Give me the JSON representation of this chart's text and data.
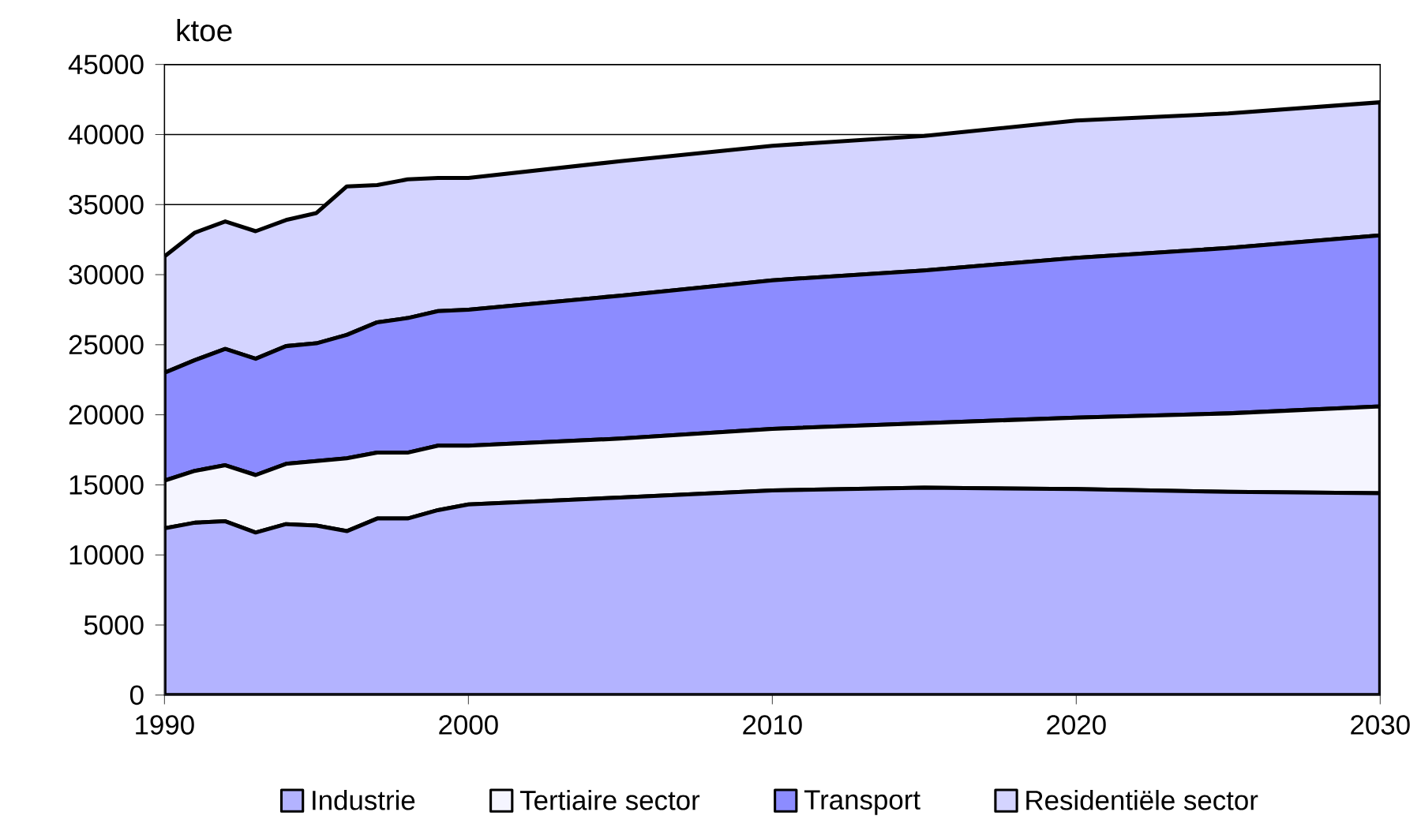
{
  "chart_data": {
    "type": "area",
    "stacked": true,
    "ylabel": "ktoe",
    "x": [
      1990,
      1991,
      1992,
      1993,
      1994,
      1995,
      1996,
      1997,
      1998,
      1999,
      2000,
      2005,
      2010,
      2015,
      2020,
      2025,
      2030
    ],
    "xlim": [
      1990,
      2030
    ],
    "xticks": [
      1990,
      2000,
      2010,
      2020,
      2030
    ],
    "ylim": [
      0,
      45000
    ],
    "yticks": [
      0,
      5000,
      10000,
      15000,
      20000,
      25000,
      30000,
      35000,
      40000,
      45000
    ],
    "grid": "y",
    "legend": "bottom",
    "series": [
      {
        "name": "Industrie",
        "color": "#b3b3ff",
        "values": [
          11900,
          12300,
          12400,
          11600,
          12200,
          12100,
          11700,
          12600,
          12600,
          13200,
          13600,
          14100,
          14600,
          14800,
          14700,
          14500,
          14400
        ]
      },
      {
        "name": "Tertiaire sector",
        "color": "#f5f5ff",
        "values": [
          3400,
          3700,
          4000,
          4100,
          4300,
          4600,
          5200,
          4700,
          4700,
          4600,
          4200,
          4200,
          4400,
          4600,
          5100,
          5600,
          6200
        ]
      },
      {
        "name": "Transport",
        "color": "#8c8cff",
        "values": [
          7700,
          7900,
          8300,
          8300,
          8400,
          8400,
          8800,
          9300,
          9600,
          9600,
          9700,
          10200,
          10600,
          10900,
          11400,
          11800,
          12200
        ]
      },
      {
        "name": "Residentiële sector",
        "color": "#d4d4ff",
        "values": [
          8300,
          9100,
          9100,
          9100,
          9000,
          9300,
          10600,
          9800,
          9900,
          9500,
          9400,
          9600,
          9600,
          9600,
          9800,
          9600,
          9500
        ]
      }
    ]
  }
}
